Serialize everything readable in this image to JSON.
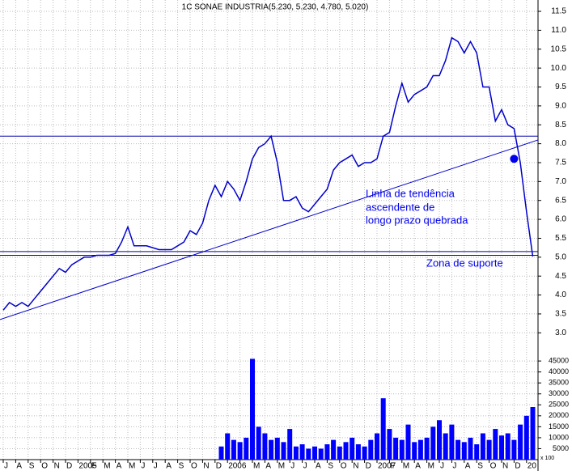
{
  "chart_data": [
    {
      "type": "line",
      "title": "1C SONAE INDUSTRIA(5.230, 5.230, 4.780, 5.020)",
      "color": "#0000cc",
      "values": [
        3.6,
        3.8,
        3.7,
        3.8,
        3.7,
        3.9,
        4.1,
        4.3,
        4.5,
        4.7,
        4.6,
        4.8,
        4.9,
        5.0,
        5.0,
        5.05,
        5.05,
        5.05,
        5.1,
        5.4,
        5.8,
        5.3,
        5.3,
        5.3,
        5.25,
        5.2,
        5.2,
        5.2,
        5.3,
        5.4,
        5.7,
        5.6,
        5.9,
        6.5,
        6.9,
        6.6,
        7.0,
        6.8,
        6.5,
        7.0,
        7.6,
        7.9,
        8.0,
        8.2,
        7.5,
        6.5,
        6.5,
        6.6,
        6.3,
        6.2,
        6.4,
        6.6,
        6.8,
        7.3,
        7.5,
        7.6,
        7.7,
        7.4,
        7.5,
        7.5,
        7.6,
        8.2,
        8.3,
        9.0,
        9.6,
        9.1,
        9.3,
        9.4,
        9.5,
        9.8,
        9.8,
        10.2,
        10.8,
        10.7,
        10.4,
        10.7,
        10.4,
        9.5,
        9.5,
        8.6,
        8.9,
        8.5,
        8.4,
        7.5,
        6.2,
        5.02
      ],
      "ylim": [
        2.6,
        11.8
      ],
      "yticks": [
        {
          "value": 3,
          "label": "3.0"
        },
        3.5,
        {
          "value": 4,
          "label": "4.0"
        },
        4.5,
        {
          "value": 5,
          "label": "5.0"
        },
        5.5,
        {
          "value": 6,
          "label": "6.0"
        },
        6.5,
        {
          "value": 7,
          "label": "7.0"
        },
        7.5,
        {
          "value": 8,
          "label": "8.0"
        },
        8.5,
        {
          "value": 9,
          "label": "9.0"
        },
        9.5,
        {
          "value": 10,
          "label": "10.0"
        },
        10.5,
        {
          "value": 11,
          "label": "11.0"
        },
        11.5
      ],
      "hlines": [
        8.2,
        5.15,
        5.05
      ],
      "trendline": [
        3.35,
        8.1
      ],
      "marker": {
        "index": 82,
        "value": 7.6
      },
      "annotations": [
        "Linha de tendência",
        "ascendente de",
        "longo prazo quebrada",
        "Zona de suporte"
      ],
      "grid": true
    },
    {
      "type": "bar",
      "color": "#0000ff",
      "unit_label": "x 100",
      "categories": [
        "J",
        null,
        "A",
        null,
        "S",
        null,
        "O",
        null,
        "N",
        null,
        "D",
        null,
        "2005",
        null,
        "F",
        null,
        "M",
        null,
        "A",
        null,
        "M",
        null,
        "J",
        null,
        "J",
        null,
        "A",
        null,
        "S",
        null,
        "O",
        null,
        "N",
        null,
        "D",
        null,
        "2006",
        null,
        null,
        null,
        "M",
        null,
        "A",
        null,
        "M",
        null,
        "J",
        null,
        "J",
        null,
        "A",
        null,
        "S",
        null,
        "O",
        null,
        "N",
        null,
        "D",
        null,
        "2007",
        null,
        "F",
        null,
        "M",
        null,
        "A",
        null,
        "M",
        null,
        "J",
        null,
        "J",
        null,
        "A",
        null,
        "S",
        null,
        "O",
        null,
        "N",
        null,
        "D",
        null,
        "20",
        null
      ],
      "values": [
        0,
        0,
        0,
        0,
        0,
        0,
        0,
        0,
        0,
        0,
        0,
        0,
        0,
        0,
        0,
        0,
        0,
        0,
        0,
        0,
        0,
        0,
        0,
        0,
        0,
        0,
        0,
        0,
        0,
        0,
        0,
        0,
        0,
        0,
        0,
        6000,
        12000,
        9000,
        8000,
        10000,
        46000,
        15000,
        12000,
        9000,
        10000,
        8000,
        14000,
        6000,
        7000,
        5000,
        6000,
        5000,
        7000,
        9000,
        6000,
        8000,
        10000,
        7000,
        6000,
        9000,
        12000,
        28000,
        14000,
        10000,
        9000,
        16000,
        8000,
        9000,
        10000,
        15000,
        18000,
        12000,
        16000,
        9000,
        8000,
        10000,
        7000,
        12000,
        9000,
        14000,
        11000,
        12000,
        9000,
        16000,
        20000,
        24000
      ],
      "ylim": [
        0,
        48000
      ],
      "yticks": [
        5000,
        10000,
        15000,
        20000,
        25000,
        30000,
        35000,
        40000,
        45000
      ],
      "grid": true
    }
  ]
}
